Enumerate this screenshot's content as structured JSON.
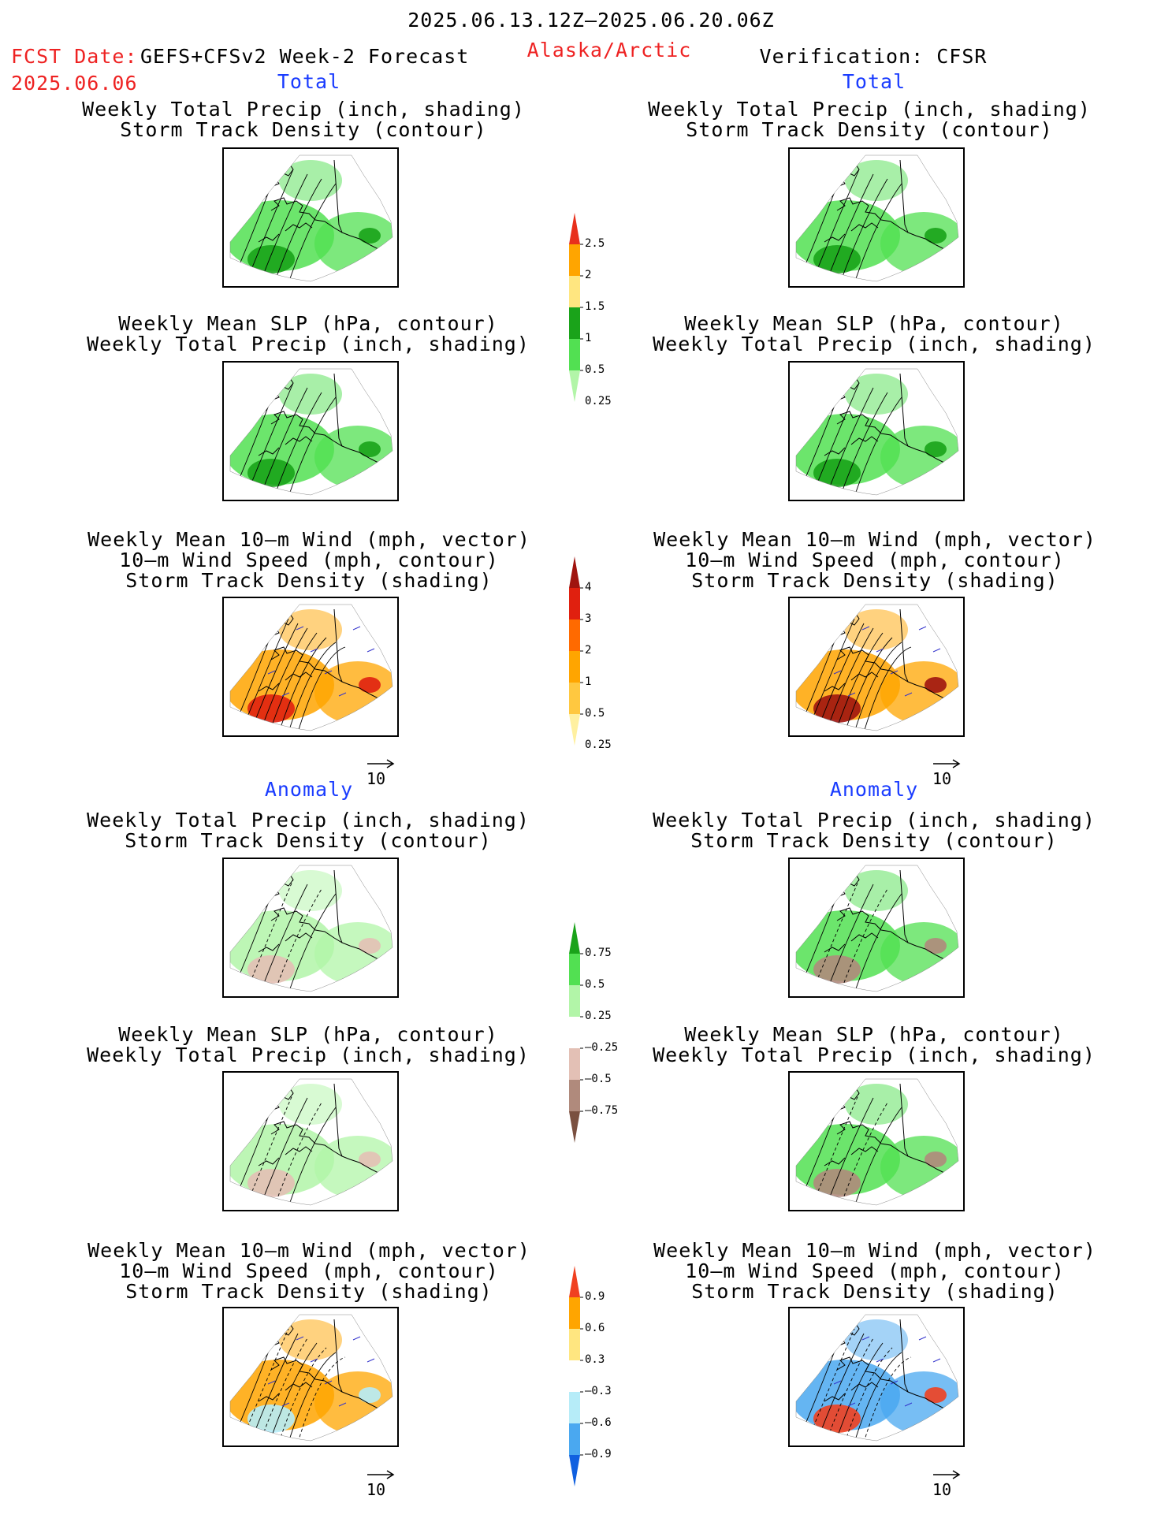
{
  "header": {
    "period": "2025.06.13.12Z–2025.06.20.06Z",
    "fcst_label": "FCST Date:",
    "forecast_name": "GEFS+CFSv2 Week-2 Forecast",
    "fcst_date": "2025.06.06",
    "region": "Alaska/Arctic",
    "verification": "Verification: CFSR"
  },
  "sections": {
    "total": "Total",
    "anomaly": "Anomaly"
  },
  "titles": {
    "precip_track": [
      "Weekly Total Precip (inch, shading)",
      "Storm Track Density (contour)"
    ],
    "slp_precip": [
      "Weekly Mean SLP (hPa, contour)",
      "Weekly Total Precip (inch, shading)"
    ],
    "wind": [
      "Weekly Mean 10–m Wind (mph, vector)",
      "10–m Wind Speed (mph, contour)",
      "Storm Track Density (shading)"
    ]
  },
  "vector_ref": "10",
  "colorbars": {
    "precip_total": {
      "labels": [
        "2.5",
        "2",
        "1.5",
        "1",
        "0.5",
        "0.25"
      ],
      "colors": [
        "#e8301c",
        "#ffa500",
        "#ffe680",
        "#1aa31a",
        "#52e052",
        "#b2f5a8"
      ]
    },
    "storm_total": {
      "labels": [
        "4",
        "3",
        "2",
        "1",
        "0.5",
        "0.25"
      ],
      "colors": [
        "#a0140f",
        "#e0200f",
        "#ff6a00",
        "#ffa500",
        "#ffc840",
        "#fff0a0"
      ]
    },
    "precip_anom": {
      "labels": [
        "0.75",
        "0.5",
        "0.25",
        "–0.25",
        "–0.5",
        "–0.75"
      ],
      "colors": [
        "#1aa31a",
        "#52e052",
        "#b2f5a8",
        "#ffffff",
        "#e3c0b5",
        "#b08a7c",
        "#7a5040"
      ]
    },
    "storm_anom": {
      "labels": [
        "0.9",
        "0.6",
        "0.3",
        "–0.3",
        "–0.6",
        "–0.9"
      ],
      "colors": [
        "#f04020",
        "#ffa500",
        "#ffe680",
        "#ffffff",
        "#b6ecf8",
        "#4aa8f0",
        "#1060e0"
      ]
    }
  },
  "panels": {
    "fcst_total_precip": {
      "fill": "#52e052",
      "accent": "#1aa31a",
      "contours": "storm"
    },
    "obs_total_precip": {
      "fill": "#52e052",
      "accent": "#1aa31a",
      "contours": "storm"
    },
    "fcst_total_slp": {
      "fill": "#52e052",
      "accent": "#1aa31a",
      "contours": "slp"
    },
    "obs_total_slp": {
      "fill": "#52e052",
      "accent": "#1aa31a",
      "contours": "slp"
    },
    "fcst_total_wind": {
      "fill": "#ffa500",
      "accent": "#e0200f",
      "contours": "wind"
    },
    "obs_total_wind": {
      "fill": "#ffa500",
      "accent": "#a0140f",
      "contours": "wind"
    },
    "fcst_anom_precip": {
      "fill": "#b2f5a8",
      "accent": "#e3c0b5",
      "contours": "storm"
    },
    "obs_anom_precip": {
      "fill": "#52e052",
      "accent": "#b08a7c",
      "contours": "storm"
    },
    "fcst_anom_slp": {
      "fill": "#b2f5a8",
      "accent": "#e3c0b5",
      "contours": "slp"
    },
    "obs_anom_slp": {
      "fill": "#52e052",
      "accent": "#b08a7c",
      "contours": "slp"
    },
    "fcst_anom_wind": {
      "fill": "#ffa500",
      "accent": "#b6ecf8",
      "contours": "wind"
    },
    "obs_anom_wind": {
      "fill": "#4aa8f0",
      "accent": "#f04020",
      "contours": "wind"
    }
  }
}
